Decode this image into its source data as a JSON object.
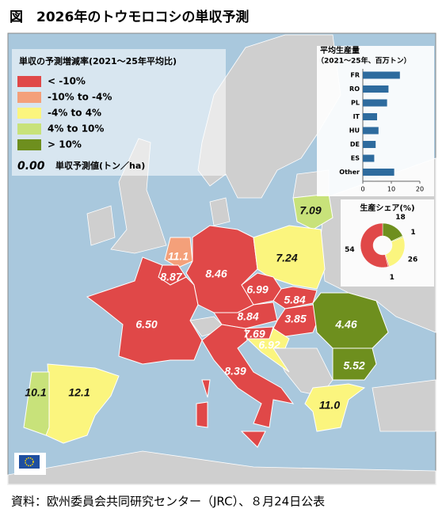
{
  "title": "図　2026年のトウモロコシの単収予測",
  "legend": {
    "title": "単収の予測増減率(2021～25年平均比)",
    "items": [
      {
        "label": "< -10%",
        "color": "#e04848"
      },
      {
        "label": "-10% to -4%",
        "color": "#f4a07a"
      },
      {
        "label": "-4% to 4%",
        "color": "#fbf57e"
      },
      {
        "label": "4% to 10%",
        "color": "#c8e27a"
      },
      {
        "label": "> 10%",
        "color": "#6e8f1e"
      }
    ],
    "value_sample": "0.00",
    "value_note": "単収予測値(トン／ha)"
  },
  "regions": [
    {
      "label": "7.09",
      "class": 3
    },
    {
      "label": "11.1",
      "class": 1
    },
    {
      "label": "8.87",
      "class": 0
    },
    {
      "label": "6.50",
      "class": 0
    },
    {
      "label": "8.46",
      "class": 0
    },
    {
      "label": "7.24",
      "class": 2
    },
    {
      "label": "6.99",
      "class": 0
    },
    {
      "label": "5.84",
      "class": 0
    },
    {
      "label": "8.84",
      "class": 0
    },
    {
      "label": "3.85",
      "class": 0
    },
    {
      "label": "7.69",
      "class": 0
    },
    {
      "label": "6.92",
      "class": 2
    },
    {
      "label": "8.39",
      "class": 0
    },
    {
      "label": "4.46",
      "class": 4
    },
    {
      "label": "5.52",
      "class": 4
    },
    {
      "label": "12.1",
      "class": 2
    },
    {
      "label": "10.1",
      "class": 3
    },
    {
      "label": "11.0",
      "class": 2
    }
  ],
  "chart_data": [
    {
      "type": "bar",
      "title": "平均生産量",
      "subtitle": "（2021～25年、百万トン）",
      "categories": [
        "FR",
        "RO",
        "PL",
        "IT",
        "HU",
        "DE",
        "ES",
        "Other"
      ],
      "values": [
        13,
        9,
        8.5,
        5,
        5.5,
        4.5,
        4,
        11
      ],
      "color": "#2e6b9e",
      "xlim": [
        0,
        20
      ],
      "xticks": [
        0,
        10,
        20
      ]
    },
    {
      "type": "pie",
      "title": "生産シェア(%)",
      "values": [
        18,
        1,
        26,
        1,
        54
      ],
      "colors": [
        "#6e8f1e",
        "#c8e27a",
        "#fbf57e",
        "#f4a07a",
        "#e04848"
      ]
    }
  ],
  "source": "資料：欧州委員会共同研究センター（JRC）、８月24日公表"
}
